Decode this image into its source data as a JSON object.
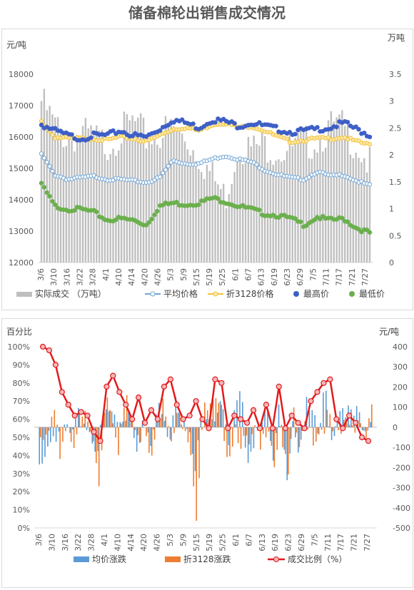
{
  "title": "储备棉轮出销售成交情况",
  "colors": {
    "bar_gray": "#bfbfbf",
    "avg_blue": "#6fa6d8",
    "price3128_yellow": "#f2c23e",
    "max_dark_blue": "#3d5fc7",
    "min_green": "#6ab04c",
    "change_blue": "#5b9bd5",
    "change_orange": "#ed7d31",
    "ratio_red": "#e31a1c",
    "ratio_marker_fill": "#f4b6b6"
  },
  "chart_data": [
    {
      "type": "bar+line+scatter",
      "left_unit": "元/吨",
      "right_unit": "万吨",
      "y_left": {
        "min": 12000,
        "max": 18000,
        "ticks": [
          "12000",
          "13000",
          "14000",
          "15000",
          "16000",
          "17000",
          "18000"
        ]
      },
      "y_right": {
        "min": 0,
        "max": 3.5,
        "ticks": [
          "0",
          "0.5",
          "1",
          "1.5",
          "2",
          "2.5",
          "3",
          "3.5"
        ]
      },
      "x_tick_labels": [
        "3/6",
        "3/10",
        "3/16",
        "3/22",
        "3/28",
        "4/1",
        "4/10",
        "4/14",
        "4/20",
        "4/26",
        "5/3",
        "5/9",
        "5/15",
        "5/19",
        "5/25",
        "6/1",
        "6/7",
        "6/13",
        "6/19",
        "6/23",
        "6/29",
        "7/5",
        "7/11",
        "7/17",
        "7/21",
        "7/27"
      ],
      "legend": [
        "实际成交 （万吨）",
        "平均价格",
        "折3128价格",
        "最高价",
        "最低价"
      ],
      "series_anchors": {
        "volume_wan_ton": [
          3.0,
          2.55,
          2.3,
          2.4,
          2.3,
          2.2,
          2.4,
          2.6,
          2.3,
          2.4,
          2.5,
          2.3,
          2.0,
          1.6,
          1.2,
          2.2,
          2.1,
          2.2,
          2.1,
          2.1,
          2.2,
          2.3,
          2.5,
          2.5,
          2.2,
          1.8
        ],
        "avg_price": [
          15450,
          14800,
          14650,
          14700,
          14750,
          14650,
          14650,
          14600,
          14550,
          14700,
          15250,
          15150,
          15150,
          15300,
          15400,
          15300,
          15200,
          14950,
          14800,
          14700,
          14650,
          14900,
          14750,
          14800,
          14600,
          14450
        ],
        "price_3128": [
          16500,
          16000,
          15950,
          15950,
          15950,
          15900,
          16000,
          15950,
          15850,
          16050,
          16250,
          16300,
          16200,
          16400,
          16450,
          16300,
          16350,
          16200,
          16000,
          15850,
          15900,
          15950,
          15950,
          16000,
          15850,
          15750
        ],
        "max_price": [
          16400,
          16200,
          16050,
          15950,
          16050,
          16050,
          16200,
          16050,
          16000,
          16250,
          16550,
          16450,
          16300,
          16550,
          16500,
          16350,
          16450,
          16350,
          16250,
          16150,
          16200,
          16250,
          16300,
          16450,
          16250,
          16050
        ],
        "min_price": [
          14500,
          13800,
          13700,
          13700,
          13600,
          13350,
          13400,
          13350,
          13200,
          13800,
          13900,
          13850,
          13900,
          14050,
          13950,
          13800,
          13700,
          13550,
          13500,
          13400,
          13200,
          13450,
          13350,
          13400,
          13100,
          12950
        ]
      }
    },
    {
      "type": "bar+line",
      "left_unit": "百分比",
      "right_unit": "元/吨",
      "y_left": {
        "min": 0,
        "max": 100,
        "ticks": [
          "0%",
          "10%",
          "20%",
          "30%",
          "40%",
          "50%",
          "60%",
          "70%",
          "80%",
          "90%",
          "100%"
        ]
      },
      "y_right": {
        "min": -500,
        "max": 400,
        "ticks": [
          "-500",
          "-400",
          "-300",
          "-200",
          "-100",
          "0",
          "100",
          "200",
          "300",
          "400"
        ]
      },
      "x_tick_labels": [
        "3/6",
        "3/10",
        "3/16",
        "3/22",
        "3/28",
        "4/1",
        "4/10",
        "4/14",
        "4/20",
        "4/26",
        "5/3",
        "5/9",
        "5/15",
        "5/19",
        "5/25",
        "6/1",
        "6/7",
        "6/13",
        "6/19",
        "6/23",
        "6/29",
        "7/5",
        "7/11",
        "7/17",
        "7/21",
        "7/27"
      ],
      "legend": [
        "均价涨跌",
        "折3128涨跌",
        "成交比例（%）"
      ],
      "series_anchors": {
        "ratio_percent": [
          100,
          98,
          90,
          75,
          68,
          62,
          64,
          62,
          53,
          48,
          78,
          84,
          75,
          68,
          60,
          72,
          58,
          65,
          60,
          78,
          82,
          68,
          60,
          62,
          70,
          60,
          55,
          82,
          80,
          55,
          62,
          60,
          58,
          65,
          55,
          68,
          55,
          78,
          55,
          62,
          58,
          55,
          70,
          75,
          80,
          82,
          60,
          55,
          62,
          58,
          50,
          48
        ],
        "avg_change": [
          -150,
          -100,
          20,
          -80,
          10,
          -60,
          40,
          30,
          -40,
          -100,
          50,
          80,
          20,
          60,
          90,
          -80,
          40,
          -120,
          60,
          120,
          -60,
          200,
          40,
          -40,
          -220,
          40,
          100,
          60,
          180,
          -120,
          40,
          150,
          -130,
          -60,
          80,
          60,
          -200,
          100,
          -250,
          60,
          -120,
          100,
          40,
          -50,
          200,
          -60,
          80,
          120,
          40,
          60,
          -60,
          40
        ],
        "p3128_change": [
          -100,
          -60,
          40,
          -120,
          30,
          -60,
          20,
          50,
          -60,
          -280,
          180,
          100,
          -80,
          120,
          60,
          -80,
          60,
          -140,
          100,
          100,
          -100,
          20,
          60,
          -40,
          -420,
          60,
          80,
          90,
          40,
          -130,
          20,
          -60,
          -120,
          -40,
          -140,
          80,
          -160,
          40,
          -300,
          30,
          -120,
          60,
          -40,
          -20,
          60,
          -30,
          -80,
          40,
          20,
          60,
          -40,
          50
        ]
      }
    }
  ]
}
